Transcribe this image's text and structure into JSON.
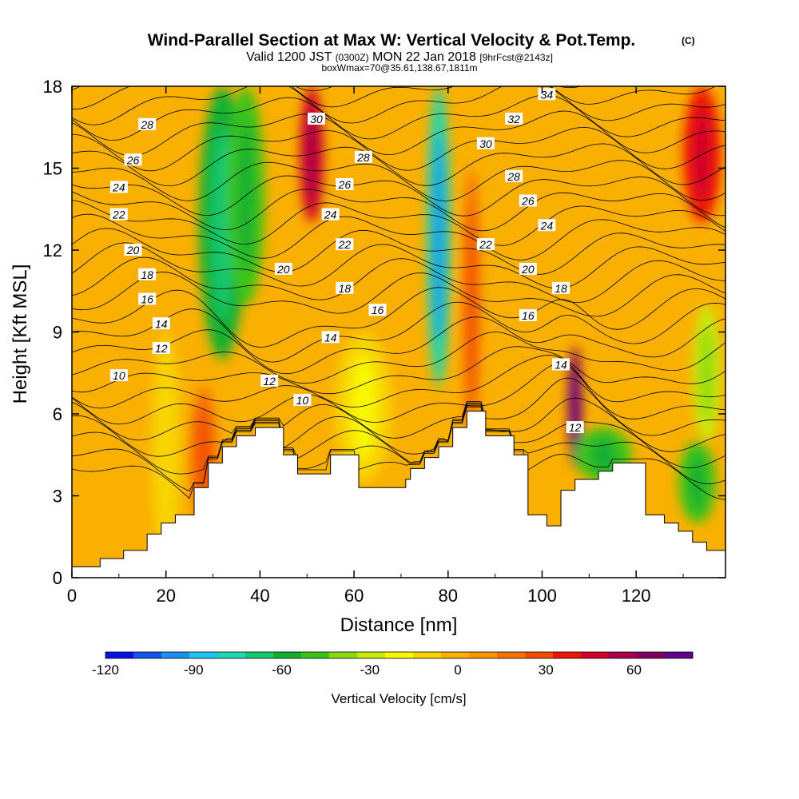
{
  "header": {
    "title_main": "Wind-Parallel Section at Max W: Vertical Velocity & Pot.Temp.",
    "title_mark": "(C)",
    "subtitle_pre": "Valid 1200 JST",
    "subtitle_utc": "(0300Z)",
    "subtitle_date": "MON 22 Jan 2018",
    "subtitle_fcst": "[9hrFcst@2143z]",
    "info_line": "boxWmax=70@35.61,138.67,1811m"
  },
  "chart_data": {
    "type": "heatmap",
    "title": "Wind-Parallel Section at Max W: Vertical Velocity & Pot.Temp.",
    "xlabel": "Distance [nm]",
    "ylabel": "Height [Kft MSL]",
    "xlim": [
      0,
      139
    ],
    "ylim": [
      0,
      18
    ],
    "x_ticks": [
      "0",
      "20",
      "40",
      "60",
      "80",
      "100",
      "120"
    ],
    "y_ticks": [
      "0",
      "3",
      "6",
      "9",
      "12",
      "15",
      "18"
    ],
    "colorbar": {
      "label": "Vertical Velocity [cm/s]",
      "range": [
        -120,
        80
      ],
      "tick_labels": [
        "-120",
        "-90",
        "-60",
        "-30",
        "0",
        "30",
        "60"
      ],
      "tick_values": [
        -120,
        -90,
        -60,
        -30,
        0,
        30,
        60
      ],
      "colors": [
        "#0a10e6",
        "#1254ee",
        "#1a90f0",
        "#20c4f0",
        "#1ed8b0",
        "#18c870",
        "#12b030",
        "#3cc414",
        "#8ad80e",
        "#c8ec08",
        "#f8f800",
        "#f8d400",
        "#fab000",
        "#f89400",
        "#f67200",
        "#f24a00",
        "#ee1400",
        "#d0002a",
        "#a8004a",
        "#800060",
        "#600090"
      ]
    },
    "terrain_profile": {
      "x": [
        0,
        6,
        6,
        11,
        11,
        16,
        16,
        19,
        19,
        22,
        22,
        25,
        25,
        26,
        26,
        29,
        29,
        32,
        32,
        35,
        35,
        39,
        39,
        45,
        45,
        48,
        48,
        52,
        52,
        55,
        55,
        58,
        58,
        61,
        61,
        65,
        65,
        71,
        71,
        72,
        72,
        75,
        75,
        78,
        78,
        81,
        81,
        84,
        84,
        88,
        88,
        94,
        94,
        97,
        97,
        101,
        101,
        104,
        104,
        107,
        107,
        109,
        109,
        112,
        112,
        115,
        115,
        118,
        118,
        122,
        122,
        126,
        126,
        129,
        129,
        132,
        132,
        135,
        135,
        139
      ],
      "y": [
        0.4,
        0.4,
        0.7,
        0.7,
        1.0,
        1.0,
        1.6,
        1.6,
        2.0,
        2.0,
        2.3,
        2.3,
        2.3,
        2.3,
        3.3,
        3.3,
        4.2,
        4.2,
        4.8,
        4.8,
        5.2,
        5.2,
        5.5,
        5.5,
        4.5,
        4.5,
        3.8,
        3.8,
        3.8,
        3.8,
        4.5,
        4.5,
        4.5,
        4.5,
        3.3,
        3.3,
        3.3,
        3.3,
        3.6,
        3.6,
        4.0,
        4.0,
        4.4,
        4.4,
        4.8,
        4.8,
        5.5,
        5.5,
        6.1,
        6.1,
        5.2,
        5.2,
        4.5,
        4.5,
        2.3,
        2.3,
        1.9,
        1.9,
        3.2,
        3.2,
        3.6,
        3.6,
        3.6,
        3.6,
        3.9,
        3.9,
        4.2,
        4.2,
        4.2,
        4.2,
        2.3,
        2.3,
        2.0,
        2.0,
        1.7,
        1.7,
        1.3,
        1.3,
        1.0,
        1.0
      ]
    },
    "velocity_features": [
      {
        "x": 20,
        "x_half_width": 3,
        "y_range": [
          0.5,
          9
        ],
        "w": -10
      },
      {
        "x": 32,
        "x_half_width": 5,
        "y_range": [
          8,
          18
        ],
        "w": -55
      },
      {
        "x": 37,
        "x_half_width": 4,
        "y_range": [
          10,
          18
        ],
        "w": -45
      },
      {
        "x": 51,
        "x_half_width": 2.5,
        "y_range": [
          13,
          18
        ],
        "w": 45
      },
      {
        "x": 78,
        "x_half_width": 2.5,
        "y_range": [
          7,
          18
        ],
        "w": -75
      },
      {
        "x": 85,
        "x_half_width": 2,
        "y_range": [
          5,
          15
        ],
        "w": 20
      },
      {
        "x": 107,
        "x_half_width": 1.5,
        "y_range": [
          4,
          8.5
        ],
        "w": 70
      },
      {
        "x": 134,
        "x_half_width": 4,
        "y_range": [
          13,
          18
        ],
        "w": 40
      },
      {
        "x": 113,
        "x_half_width": 6,
        "y_range": [
          3.5,
          5.5
        ],
        "w": -50
      },
      {
        "x": 133,
        "x_half_width": 4,
        "y_range": [
          2,
          5
        ],
        "w": -50
      },
      {
        "x": 135,
        "x_half_width": 3,
        "y_range": [
          5,
          10
        ],
        "w": -30
      },
      {
        "x": 62,
        "x_half_width": 6,
        "y_range": [
          3.5,
          9
        ],
        "w": -15
      },
      {
        "x": 28,
        "x_half_width": 3,
        "y_range": [
          2,
          7
        ],
        "w": 20
      }
    ],
    "pot_temp_contour_labels": [
      {
        "value": "28",
        "x": 16,
        "y": 16.6
      },
      {
        "value": "26",
        "x": 13,
        "y": 15.3
      },
      {
        "value": "24",
        "x": 10,
        "y": 14.3
      },
      {
        "value": "22",
        "x": 10,
        "y": 13.3
      },
      {
        "value": "20",
        "x": 13,
        "y": 12.0
      },
      {
        "value": "18",
        "x": 16,
        "y": 11.1
      },
      {
        "value": "16",
        "x": 16,
        "y": 10.2
      },
      {
        "value": "14",
        "x": 19,
        "y": 9.3
      },
      {
        "value": "12",
        "x": 19,
        "y": 8.4
      },
      {
        "value": "10",
        "x": 10,
        "y": 7.4
      },
      {
        "value": "30",
        "x": 52,
        "y": 16.8
      },
      {
        "value": "28",
        "x": 62,
        "y": 15.4
      },
      {
        "value": "26",
        "x": 58,
        "y": 14.4
      },
      {
        "value": "24",
        "x": 55,
        "y": 13.3
      },
      {
        "value": "22",
        "x": 58,
        "y": 12.2
      },
      {
        "value": "20",
        "x": 45,
        "y": 11.3
      },
      {
        "value": "18",
        "x": 58,
        "y": 10.6
      },
      {
        "value": "16",
        "x": 65,
        "y": 9.8
      },
      {
        "value": "14",
        "x": 55,
        "y": 8.8
      },
      {
        "value": "12",
        "x": 42,
        "y": 7.2
      },
      {
        "value": "10",
        "x": 49,
        "y": 6.5
      },
      {
        "value": "34",
        "x": 101,
        "y": 17.7
      },
      {
        "value": "32",
        "x": 94,
        "y": 16.8
      },
      {
        "value": "30",
        "x": 88,
        "y": 15.9
      },
      {
        "value": "28",
        "x": 94,
        "y": 14.7
      },
      {
        "value": "26",
        "x": 97,
        "y": 13.8
      },
      {
        "value": "24",
        "x": 101,
        "y": 12.9
      },
      {
        "value": "22",
        "x": 88,
        "y": 12.2
      },
      {
        "value": "20",
        "x": 97,
        "y": 11.3
      },
      {
        "value": "18",
        "x": 104,
        "y": 10.6
      },
      {
        "value": "16",
        "x": 97,
        "y": 9.6
      },
      {
        "value": "14",
        "x": 104,
        "y": 7.8
      },
      {
        "value": "12",
        "x": 107,
        "y": 5.5
      }
    ]
  }
}
